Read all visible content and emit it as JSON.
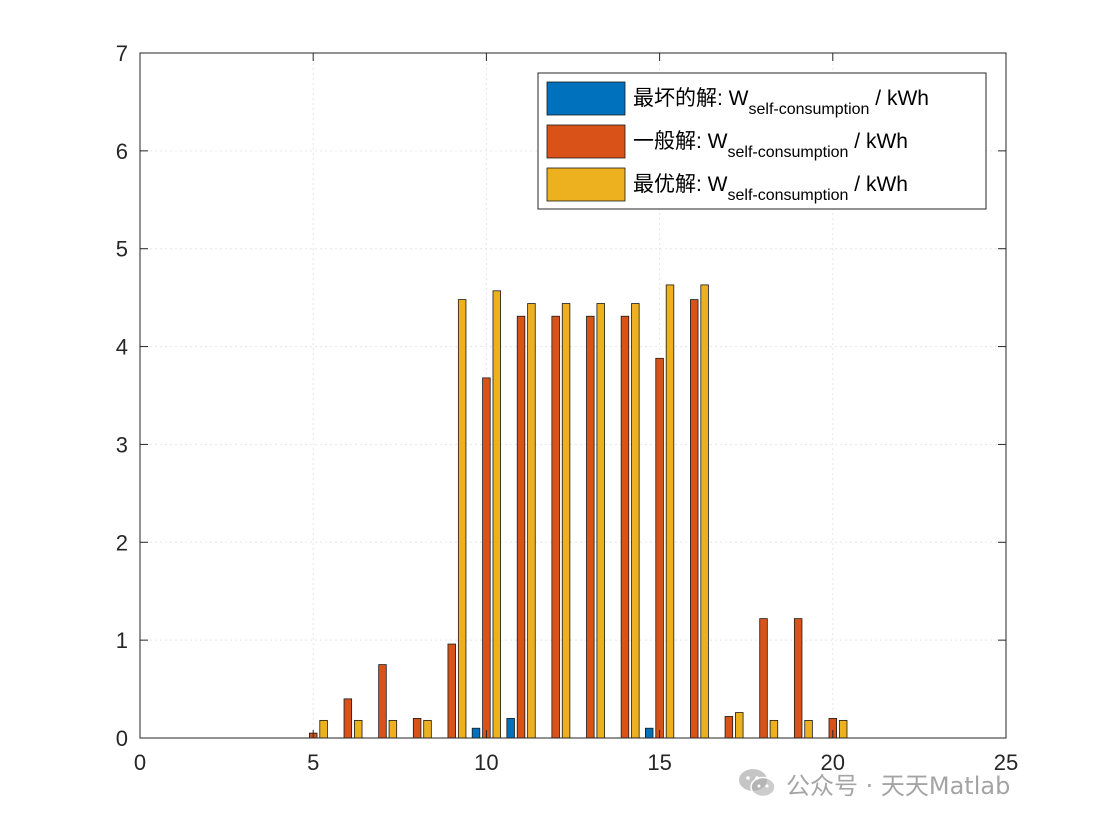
{
  "chart_data": {
    "type": "bar",
    "x": [
      1,
      2,
      3,
      4,
      5,
      6,
      7,
      8,
      9,
      10,
      11,
      12,
      13,
      14,
      15,
      16,
      17,
      18,
      19,
      20,
      21,
      22,
      23,
      24
    ],
    "xlim": [
      0,
      25
    ],
    "ylim": [
      0,
      7
    ],
    "xticks": [
      "0",
      "5",
      "10",
      "15",
      "20",
      "25"
    ],
    "yticks": [
      "0",
      "1",
      "2",
      "3",
      "4",
      "5",
      "6",
      "7"
    ],
    "grid": true,
    "legend_position": "top-right",
    "series": [
      {
        "name": "最坏的解: W",
        "name_sub": "self-consumption",
        "name_unit": " / kWh",
        "color": "#0072BD",
        "values": [
          0,
          0,
          0,
          0,
          0,
          0,
          0,
          0,
          0,
          0.1,
          0.2,
          0,
          0,
          0,
          0.1,
          0,
          0,
          0,
          0,
          0,
          0,
          0,
          0,
          0
        ]
      },
      {
        "name": "一般解: W",
        "name_sub": "self-consumption",
        "name_unit": " / kWh",
        "color": "#D95319",
        "values": [
          0,
          0,
          0,
          0,
          0.05,
          0.4,
          0.75,
          0.2,
          0.96,
          3.68,
          4.31,
          4.31,
          4.31,
          4.31,
          3.88,
          4.48,
          0.22,
          1.22,
          1.22,
          0.2,
          0,
          0,
          0,
          0
        ]
      },
      {
        "name": "最优解: W",
        "name_sub": "self-consumption",
        "name_unit": " / kWh",
        "color": "#EDB120",
        "values": [
          0,
          0,
          0,
          0,
          0.18,
          0.18,
          0.18,
          0.18,
          4.48,
          4.57,
          4.44,
          4.44,
          4.44,
          4.44,
          4.63,
          4.63,
          0.26,
          0.18,
          0.18,
          0.18,
          0,
          0,
          0,
          0
        ]
      }
    ]
  },
  "watermark": {
    "text": "公众号 · 天天Matlab",
    "icon": "wechat-icon"
  }
}
